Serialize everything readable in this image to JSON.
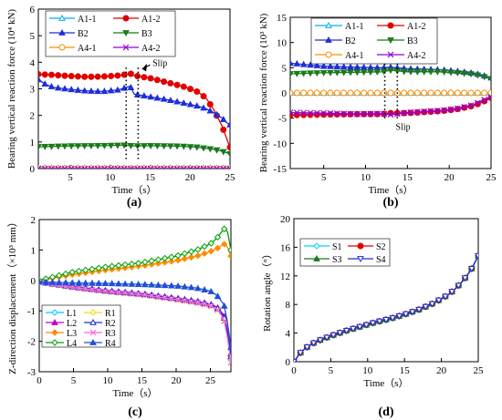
{
  "chart_data": [
    {
      "type": "line",
      "panel_label": "(a)",
      "xlabel": "Time（s）",
      "ylabel": "Bearing vertical reaction force (10⁴ kN)",
      "xlim": [
        1,
        25
      ],
      "ylim": [
        0,
        6
      ],
      "xticks": [
        5,
        10,
        15,
        20,
        25
      ],
      "yticks": [
        0,
        1,
        2,
        3,
        4,
        5,
        6
      ],
      "grid": false,
      "legend_placement": "top",
      "annotation": "Slip",
      "series": [
        {
          "name": "A1-1",
          "color": "#00b0f0",
          "marker": "triangle-open",
          "x": [
            1,
            25
          ],
          "y": [
            0.02,
            0.02
          ]
        },
        {
          "name": "A1-2",
          "color": "#e00000",
          "marker": "circle",
          "x": [
            1,
            3,
            5,
            7,
            9,
            11,
            12,
            12.5,
            13,
            15,
            17,
            19,
            20,
            21,
            22,
            23,
            24,
            24.5,
            25
          ],
          "y": [
            3.55,
            3.52,
            3.48,
            3.45,
            3.46,
            3.5,
            3.54,
            3.58,
            3.5,
            3.4,
            3.25,
            3.1,
            3.0,
            2.88,
            2.65,
            2.2,
            1.6,
            1.2,
            0.8
          ]
        },
        {
          "name": "B2",
          "color": "#1f2ed8",
          "marker": "triangle",
          "x": [
            1,
            2,
            3,
            5,
            7,
            9,
            11,
            12,
            12.5,
            13,
            15,
            17,
            19,
            21,
            22,
            23,
            24,
            24.5,
            25
          ],
          "y": [
            3.35,
            3.15,
            3.05,
            2.98,
            2.92,
            2.9,
            2.96,
            3.05,
            3.1,
            2.8,
            2.7,
            2.6,
            2.48,
            2.35,
            2.25,
            2.1,
            1.9,
            1.75,
            1.65
          ]
        },
        {
          "name": "B3",
          "color": "#1a7a1a",
          "marker": "triangle-down",
          "x": [
            1,
            5,
            9,
            12,
            13,
            15,
            19,
            21,
            23,
            24,
            25
          ],
          "y": [
            0.82,
            0.85,
            0.86,
            0.88,
            0.85,
            0.86,
            0.84,
            0.8,
            0.72,
            0.65,
            0.55
          ]
        },
        {
          "name": "A4-1",
          "color": "#ff8c00",
          "marker": "circle-open",
          "x": [
            1,
            25
          ],
          "y": [
            0.0,
            0.0
          ]
        },
        {
          "name": "A4-2",
          "color": "#9400d3",
          "marker": "x",
          "x": [
            1,
            25
          ],
          "y": [
            0.0,
            0.0
          ]
        }
      ]
    },
    {
      "type": "line",
      "panel_label": "(b)",
      "xlabel": "Time（s）",
      "ylabel": "Bearing vertical reaction force (10³ kN)",
      "xlim": [
        1,
        25
      ],
      "ylim": [
        -15,
        15
      ],
      "xticks": [
        5,
        10,
        15,
        20,
        25
      ],
      "yticks": [
        -15,
        -10,
        -5,
        0,
        5,
        10,
        15
      ],
      "grid": false,
      "legend_placement": "top",
      "annotation": "Slip",
      "series": [
        {
          "name": "A1-1",
          "color": "#00b0f0",
          "marker": "triangle-open",
          "x": [
            1,
            25
          ],
          "y": [
            0,
            0
          ]
        },
        {
          "name": "A1-2",
          "color": "#e00000",
          "marker": "circle",
          "x": [
            1,
            5,
            9,
            12,
            13,
            15,
            19,
            21,
            23,
            24,
            25
          ],
          "y": [
            -4.4,
            -4.3,
            -4.2,
            -4.2,
            -4.0,
            -4.0,
            -3.6,
            -3.2,
            -2.5,
            -1.8,
            -1.0
          ]
        },
        {
          "name": "B2",
          "color": "#1f2ed8",
          "marker": "triangle",
          "x": [
            1,
            3,
            5,
            9,
            12,
            13,
            15,
            19,
            21,
            23,
            24,
            25
          ],
          "y": [
            5.9,
            5.6,
            5.3,
            5.1,
            5.0,
            5.1,
            4.8,
            4.6,
            4.3,
            3.9,
            3.5,
            3.0
          ]
        },
        {
          "name": "B3",
          "color": "#1a7a1a",
          "marker": "triangle-down",
          "x": [
            1,
            5,
            9,
            12,
            13,
            15,
            19,
            21,
            23,
            24,
            25
          ],
          "y": [
            3.8,
            4.0,
            4.1,
            4.2,
            4.5,
            4.2,
            4.2,
            4.0,
            3.7,
            3.3,
            2.8
          ]
        },
        {
          "name": "A4-1",
          "color": "#ff8c00",
          "marker": "circle-open",
          "x": [
            1,
            25
          ],
          "y": [
            0,
            0
          ]
        },
        {
          "name": "A4-2",
          "color": "#9400d3",
          "marker": "x",
          "x": [
            1,
            5,
            9,
            12,
            13,
            15,
            19,
            21,
            23,
            24,
            25
          ],
          "y": [
            -3.9,
            -4.0,
            -4.2,
            -4.1,
            -4.3,
            -3.9,
            -3.5,
            -3.1,
            -2.3,
            -1.5,
            -0.8
          ]
        }
      ]
    },
    {
      "type": "line",
      "panel_label": "(c)",
      "xlabel": "Time（s）",
      "ylabel": "Z-direction displacement（×10³ mm）",
      "xlim": [
        0,
        28
      ],
      "ylim": [
        -3,
        2
      ],
      "xticks": [
        0,
        5,
        10,
        15,
        20,
        25
      ],
      "yticks": [
        -3,
        -2,
        -1,
        0,
        1,
        2
      ],
      "grid": false,
      "legend_placement": "bottom-left",
      "series": [
        {
          "name": "L1",
          "color": "#00c8ff",
          "marker": "diamond-open",
          "x": [
            0,
            5,
            10,
            15,
            20,
            23,
            25,
            26,
            27,
            27.5,
            28
          ],
          "y": [
            -0.05,
            -0.2,
            -0.35,
            -0.45,
            -0.6,
            -0.7,
            -0.8,
            -0.9,
            -1.2,
            -1.7,
            -2.5
          ]
        },
        {
          "name": "R1",
          "color": "#f0e000",
          "marker": "diamond-open",
          "x": [
            0,
            5,
            10,
            15,
            20,
            23,
            25,
            26,
            27,
            27.5,
            28
          ],
          "y": [
            -0.05,
            -0.22,
            -0.36,
            -0.46,
            -0.62,
            -0.72,
            -0.82,
            -0.92,
            -1.25,
            -1.8,
            -2.6
          ]
        },
        {
          "name": "L2",
          "color": "#c000c0",
          "marker": "triangle",
          "x": [
            0,
            5,
            10,
            15,
            20,
            23,
            25,
            26,
            27,
            27.5,
            28
          ],
          "y": [
            -0.05,
            -0.21,
            -0.34,
            -0.44,
            -0.58,
            -0.68,
            -0.78,
            -0.88,
            -1.15,
            -1.65,
            -2.4
          ]
        },
        {
          "name": "R2",
          "color": "#1f2ed8",
          "marker": "triangle-open",
          "x": [
            0,
            5,
            10,
            15,
            20,
            23,
            25,
            26,
            27,
            27.5,
            28
          ],
          "y": [
            -0.05,
            -0.22,
            -0.35,
            -0.45,
            -0.6,
            -0.7,
            -0.8,
            -0.9,
            -1.2,
            -1.75,
            -2.5
          ]
        },
        {
          "name": "L3",
          "color": "#ff8c00",
          "marker": "diamond",
          "x": [
            0,
            5,
            10,
            15,
            20,
            23,
            25,
            26,
            27,
            27.5,
            28
          ],
          "y": [
            0,
            0.2,
            0.35,
            0.48,
            0.65,
            0.8,
            0.95,
            1.05,
            1.2,
            1.1,
            0.8
          ]
        },
        {
          "name": "R3",
          "color": "#ff66cc",
          "marker": "x",
          "x": [
            0,
            5,
            10,
            15,
            20,
            23,
            25,
            26,
            27,
            27.5,
            28
          ],
          "y": [
            -0.05,
            -0.23,
            -0.37,
            -0.47,
            -0.63,
            -0.73,
            -0.83,
            -0.94,
            -1.3,
            -1.9,
            -2.7
          ]
        },
        {
          "name": "L4",
          "color": "#00a000",
          "marker": "diamond-open",
          "x": [
            0,
            5,
            10,
            15,
            20,
            23,
            25,
            26,
            27,
            27.5,
            28
          ],
          "y": [
            0,
            0.28,
            0.45,
            0.58,
            0.8,
            1.0,
            1.2,
            1.4,
            1.7,
            1.6,
            1.0
          ]
        },
        {
          "name": "R4",
          "color": "#1f4fd8",
          "marker": "triangle",
          "x": [
            0,
            5,
            10,
            15,
            20,
            23,
            25,
            26,
            27,
            27.5,
            28
          ],
          "y": [
            -0.05,
            -0.08,
            -0.1,
            -0.13,
            -0.18,
            -0.25,
            -0.35,
            -0.5,
            -0.8,
            -1.4,
            -2.2
          ]
        }
      ]
    },
    {
      "type": "line",
      "panel_label": "(d)",
      "xlabel": "Time（s）",
      "ylabel": "Rotation angle（°）",
      "xlim": [
        0,
        25
      ],
      "ylim": [
        0,
        20
      ],
      "xticks": [
        0,
        5,
        10,
        15,
        20,
        25
      ],
      "yticks": [
        0,
        4,
        8,
        12,
        16,
        20
      ],
      "grid": false,
      "legend_placement": "top-left",
      "series": [
        {
          "name": "S1",
          "color": "#00d8ff",
          "marker": "diamond-open",
          "x": [
            0,
            1,
            2,
            3,
            5,
            7,
            9,
            11,
            13,
            15,
            17,
            19,
            21,
            22,
            23,
            24,
            25
          ],
          "y": [
            0,
            1.4,
            2.2,
            2.8,
            3.6,
            4.3,
            4.9,
            5.5,
            6.0,
            6.6,
            7.3,
            8.2,
            9.4,
            10.3,
            11.4,
            12.8,
            14.8
          ]
        },
        {
          "name": "S2",
          "color": "#e00000",
          "marker": "circle",
          "x": [
            0,
            1,
            2,
            3,
            5,
            7,
            9,
            11,
            13,
            15,
            17,
            19,
            21,
            22,
            23,
            24,
            25
          ],
          "y": [
            0,
            1.4,
            2.2,
            2.8,
            3.6,
            4.3,
            4.9,
            5.5,
            6.0,
            6.6,
            7.3,
            8.2,
            9.4,
            10.3,
            11.4,
            12.8,
            14.8
          ]
        },
        {
          "name": "S3",
          "color": "#1a7a1a",
          "marker": "triangle",
          "x": [
            0,
            1,
            2,
            3,
            5,
            7,
            9,
            11,
            13,
            15,
            17,
            19,
            21,
            22,
            23,
            24,
            25
          ],
          "y": [
            0,
            1.4,
            2.2,
            2.8,
            3.6,
            4.3,
            4.9,
            5.5,
            6.0,
            6.6,
            7.3,
            8.2,
            9.4,
            10.3,
            11.4,
            12.8,
            14.8
          ]
        },
        {
          "name": "S4",
          "color": "#1f2ed8",
          "marker": "triangle-down-open",
          "x": [
            0,
            1,
            2,
            3,
            5,
            7,
            9,
            11,
            13,
            15,
            17,
            19,
            21,
            22,
            23,
            24,
            25
          ],
          "y": [
            0,
            1.4,
            2.2,
            2.8,
            3.6,
            4.3,
            4.9,
            5.5,
            6.0,
            6.6,
            7.3,
            8.2,
            9.4,
            10.3,
            11.4,
            12.8,
            14.8
          ]
        }
      ]
    }
  ]
}
